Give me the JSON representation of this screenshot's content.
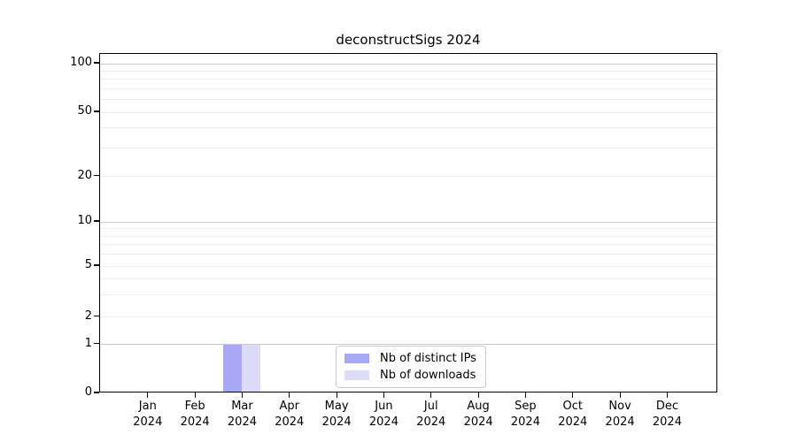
{
  "title": "deconstructSigs 2024",
  "chart_data": {
    "type": "bar",
    "title": "deconstructSigs 2024",
    "xlabel": "",
    "ylabel": "",
    "yscale": "symlog",
    "grid": "horizontal",
    "ylim": [
      0,
      115
    ],
    "yticks": [
      0,
      1,
      2,
      5,
      10,
      20,
      50,
      100
    ],
    "minor_yticks": [
      3,
      4,
      6,
      7,
      8,
      9,
      30,
      40,
      60,
      70,
      80,
      90
    ],
    "decade_ticks": [
      1,
      10,
      100
    ],
    "categories": [
      {
        "label": "Jan",
        "sublabel": "2024"
      },
      {
        "label": "Feb",
        "sublabel": "2024"
      },
      {
        "label": "Mar",
        "sublabel": "2024"
      },
      {
        "label": "Apr",
        "sublabel": "2024"
      },
      {
        "label": "May",
        "sublabel": "2024"
      },
      {
        "label": "Jun",
        "sublabel": "2024"
      },
      {
        "label": "Jul",
        "sublabel": "2024"
      },
      {
        "label": "Aug",
        "sublabel": "2024"
      },
      {
        "label": "Sep",
        "sublabel": "2024"
      },
      {
        "label": "Oct",
        "sublabel": "2024"
      },
      {
        "label": "Nov",
        "sublabel": "2024"
      },
      {
        "label": "Dec",
        "sublabel": "2024"
      }
    ],
    "series": [
      {
        "name": "Nb of distinct IPs",
        "color": "#a8a8f4",
        "values": [
          0,
          0,
          1,
          0,
          0,
          0,
          0,
          0,
          0,
          0,
          0,
          0
        ]
      },
      {
        "name": "Nb of downloads",
        "color": "#dcdcf9",
        "values": [
          0,
          0,
          1,
          0,
          0,
          0,
          0,
          0,
          0,
          0,
          0,
          0
        ]
      }
    ],
    "legend": {
      "position": "inside-bottom-center",
      "entries": [
        "Nb of distinct IPs",
        "Nb of downloads"
      ]
    }
  }
}
